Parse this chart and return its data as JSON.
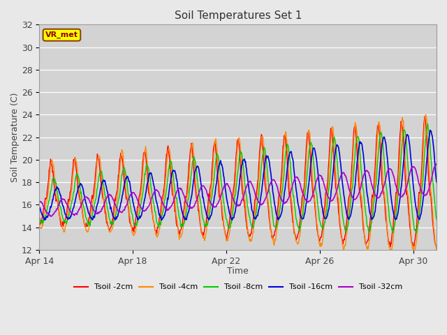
{
  "title": "Soil Temperatures Set 1",
  "xlabel": "Time",
  "ylabel": "Soil Temperature (C)",
  "ylim": [
    12,
    32
  ],
  "background_color": "#e8e8e8",
  "plot_bg_color": "#d3d3d3",
  "grid_color": "#ffffff",
  "annotation_label": "VR_met",
  "annotation_bg": "#ffff00",
  "annotation_border": "#8B4513",
  "annotation_text_color": "#8B0000",
  "x_ticks_labels": [
    "Apr 14",
    "Apr 18",
    "Apr 22",
    "Apr 26",
    "Apr 30"
  ],
  "x_ticks_days": [
    0,
    4,
    8,
    12,
    16
  ],
  "y_ticks": [
    12,
    14,
    16,
    18,
    20,
    22,
    24,
    26,
    28,
    30,
    32
  ],
  "series": [
    {
      "label": "Tsoil -2cm",
      "color": "#ff0000",
      "lw": 1.0
    },
    {
      "label": "Tsoil -4cm",
      "color": "#ff8800",
      "lw": 1.0
    },
    {
      "label": "Tsoil -8cm",
      "color": "#00cc00",
      "lw": 1.0
    },
    {
      "label": "Tsoil -16cm",
      "color": "#0000dd",
      "lw": 1.2
    },
    {
      "label": "Tsoil -32cm",
      "color": "#aa00cc",
      "lw": 1.2
    }
  ],
  "n_days": 17,
  "pts_per_day": 48
}
